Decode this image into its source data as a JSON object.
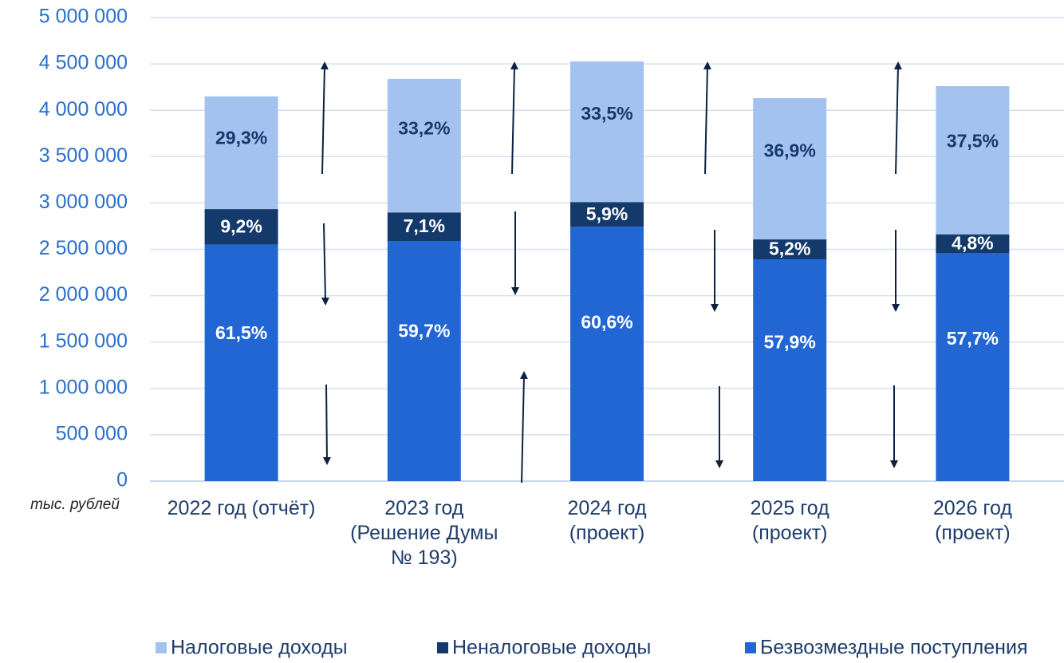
{
  "chart_data": {
    "type": "stacked_bar",
    "categories": [
      "2022 год (отчёт)",
      "2023 год\n(Решение Думы\n№ 193)",
      "2024 год\n(проект)",
      "2025 год\n(проект)",
      "2026 год\n(проект)"
    ],
    "series": [
      {
        "name": "Безвозмездные поступления",
        "color": "#2266d4",
        "values": [
          2552000,
          2590000,
          2743000,
          2392000,
          2458000
        ],
        "data_labels": [
          "61,5%",
          "59,7%",
          "60,6%",
          "57,9%",
          "57,7%"
        ]
      },
      {
        "name": "Неналоговые доходы",
        "color": "#143a6b",
        "values": [
          382000,
          308000,
          267000,
          215000,
          204000
        ],
        "data_labels": [
          "9,2%",
          "7,1%",
          "5,9%",
          "5,2%",
          "4,8%"
        ]
      },
      {
        "name": "Налоговые доходы",
        "color": "#a4c2f0",
        "values": [
          1216000,
          1440000,
          1517000,
          1524000,
          1598000
        ],
        "data_labels": [
          "29,3%",
          "33,2%",
          "33,5%",
          "36,9%",
          "37,5%"
        ]
      }
    ],
    "legend_order": [
      2,
      1,
      0
    ],
    "y_unit": "тыс. рублей",
    "ylim": [
      0,
      5000000
    ],
    "yticks": [
      0,
      {
        "value": 500000,
        "label": "500 000"
      },
      {
        "value": 1000000,
        "label": "1 000 000"
      },
      {
        "value": 1500000,
        "label": "1 500 000"
      },
      {
        "value": 2000000,
        "label": "2 000 000"
      },
      {
        "value": 2500000,
        "label": "2 500 000"
      },
      {
        "value": 3000000,
        "label": "3 000 000"
      },
      {
        "value": 3500000,
        "label": "3 500 000"
      },
      {
        "value": 4000000,
        "label": "4 000 000"
      },
      {
        "value": 4500000,
        "label": "4 500 000"
      },
      {
        "value": 5000000,
        "label": "5 000 000"
      }
    ],
    "grid": true
  }
}
